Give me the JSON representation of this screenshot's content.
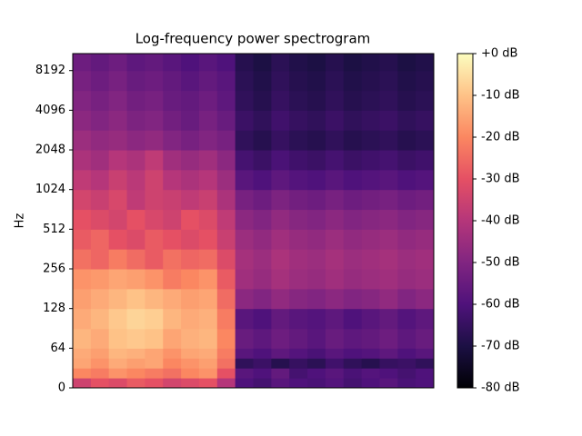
{
  "chart_data": {
    "type": "heatmap",
    "title": "Log-frequency power spectrogram",
    "y_label": "Hz",
    "yscale": "symlog",
    "linthresh": 64,
    "ylim": [
      0,
      11025
    ],
    "yticks": [
      0,
      64,
      128,
      256,
      512,
      1024,
      2048,
      4096,
      8192
    ],
    "y_bins": [
      0,
      16,
      32,
      48,
      64,
      90,
      128,
      181,
      256,
      362,
      512,
      724,
      1024,
      1448,
      2048,
      2896,
      4096,
      5793,
      8192,
      11025
    ],
    "colormap": "magma",
    "zlim": [
      -80,
      0
    ],
    "colorbar_ticks": [
      {
        "value": 0,
        "label": "+0 dB"
      },
      {
        "value": -10,
        "label": "-10 dB"
      },
      {
        "value": -20,
        "label": "-20 dB"
      },
      {
        "value": -30,
        "label": "-30 dB"
      },
      {
        "value": -40,
        "label": "-40 dB"
      },
      {
        "value": -50,
        "label": "-50 dB"
      },
      {
        "value": -60,
        "label": "-60 dB"
      },
      {
        "value": -70,
        "label": "-70 dB"
      },
      {
        "value": -80,
        "label": "-80 dB"
      }
    ],
    "z": [
      [
        -35,
        -30,
        -32,
        -28,
        -30,
        -34,
        -32,
        -30,
        -40,
        -60,
        -62,
        -58,
        -60,
        -61,
        -59,
        -62,
        -60,
        -58,
        -61,
        -60
      ],
      [
        -20,
        -22,
        -18,
        -20,
        -22,
        -24,
        -20,
        -18,
        -30,
        -58,
        -60,
        -56,
        -62,
        -60,
        -58,
        -61,
        -59,
        -60,
        -62,
        -60
      ],
      [
        -15,
        -18,
        -14,
        -16,
        -15,
        -20,
        -18,
        -16,
        -24,
        -66,
        -64,
        -68,
        -65,
        -67,
        -63,
        -66,
        -68,
        -65,
        -64,
        -66
      ],
      [
        -14,
        -16,
        -12,
        -13,
        -15,
        -18,
        -15,
        -14,
        -22,
        -58,
        -60,
        -57,
        -59,
        -61,
        -58,
        -60,
        -59,
        -57,
        -60,
        -58
      ],
      [
        -12,
        -14,
        -10,
        -9,
        -10,
        -15,
        -13,
        -12,
        -20,
        -55,
        -57,
        -54,
        -56,
        -58,
        -55,
        -57,
        -56,
        -54,
        -57,
        -55
      ],
      [
        -14,
        -12,
        -9,
        -7,
        -8,
        -12,
        -14,
        -13,
        -22,
        -58,
        -60,
        -56,
        -58,
        -59,
        -57,
        -60,
        -58,
        -56,
        -59,
        -57
      ],
      [
        -16,
        -14,
        -12,
        -10,
        -12,
        -14,
        -16,
        -15,
        -25,
        -48,
        -50,
        -47,
        -49,
        -50,
        -48,
        -50,
        -49,
        -47,
        -50,
        -48
      ],
      [
        -18,
        -17,
        -15,
        -16,
        -18,
        -22,
        -20,
        -18,
        -28,
        -44,
        -46,
        -43,
        -45,
        -46,
        -44,
        -46,
        -45,
        -44,
        -46,
        -45
      ],
      [
        -24,
        -26,
        -22,
        -25,
        -28,
        -24,
        -26,
        -25,
        -32,
        -43,
        -45,
        -42,
        -44,
        -45,
        -43,
        -45,
        -44,
        -43,
        -45,
        -44
      ],
      [
        -28,
        -26,
        -30,
        -32,
        -28,
        -30,
        -32,
        -30,
        -36,
        -45,
        -47,
        -44,
        -46,
        -47,
        -45,
        -47,
        -46,
        -45,
        -47,
        -46
      ],
      [
        -30,
        -32,
        -34,
        -30,
        -33,
        -35,
        -30,
        -32,
        -38,
        -48,
        -50,
        -47,
        -49,
        -50,
        -48,
        -50,
        -49,
        -48,
        -50,
        -49
      ],
      [
        -34,
        -36,
        -33,
        -38,
        -35,
        -36,
        -38,
        -36,
        -42,
        -52,
        -54,
        -51,
        -53,
        -54,
        -52,
        -54,
        -53,
        -52,
        -54,
        -53
      ],
      [
        -38,
        -40,
        -36,
        -39,
        -35,
        -40,
        -42,
        -40,
        -45,
        -58,
        -60,
        -57,
        -59,
        -60,
        -58,
        -60,
        -59,
        -58,
        -60,
        -59
      ],
      [
        -42,
        -44,
        -40,
        -42,
        -38,
        -44,
        -46,
        -44,
        -48,
        -62,
        -64,
        -61,
        -63,
        -64,
        -62,
        -64,
        -63,
        -62,
        -64,
        -63
      ],
      [
        -45,
        -47,
        -46,
        -48,
        -47,
        -50,
        -52,
        -50,
        -52,
        -66,
        -68,
        -65,
        -67,
        -68,
        -66,
        -68,
        -67,
        -66,
        -68,
        -67
      ],
      [
        -48,
        -50,
        -48,
        -51,
        -50,
        -53,
        -55,
        -52,
        -55,
        -64,
        -66,
        -63,
        -65,
        -66,
        -64,
        -66,
        -65,
        -64,
        -66,
        -65
      ],
      [
        -50,
        -52,
        -50,
        -53,
        -52,
        -55,
        -56,
        -54,
        -57,
        -66,
        -68,
        -65,
        -67,
        -68,
        -66,
        -68,
        -67,
        -66,
        -68,
        -67
      ],
      [
        -52,
        -54,
        -52,
        -55,
        -54,
        -56,
        -58,
        -56,
        -58,
        -67,
        -69,
        -66,
        -68,
        -69,
        -67,
        -69,
        -68,
        -67,
        -69,
        -68
      ],
      [
        -54,
        -56,
        -54,
        -57,
        -56,
        -58,
        -60,
        -58,
        -60,
        -68,
        -70,
        -67,
        -69,
        -70,
        -68,
        -70,
        -69,
        -68,
        -70,
        -69
      ]
    ]
  }
}
